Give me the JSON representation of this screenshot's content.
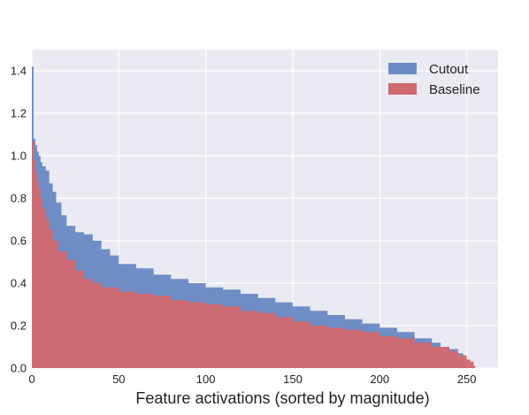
{
  "chart_data": {
    "type": "area",
    "xlabel": "Feature activations (sorted by magnitude)",
    "ylabel": "",
    "xlim": [
      0,
      268
    ],
    "ylim": [
      0,
      1.5
    ],
    "xticks": [
      0,
      50,
      100,
      150,
      200,
      250
    ],
    "xtick_labels": [
      "0",
      "50",
      "100",
      "150",
      "200",
      "250"
    ],
    "yticks": [
      0.0,
      0.2,
      0.4,
      0.6,
      0.8,
      1.0,
      1.2,
      1.4
    ],
    "ytick_labels": [
      "0.0",
      "0.2",
      "0.4",
      "0.6",
      "0.8",
      "1.0",
      "1.2",
      "1.4"
    ],
    "grid": true,
    "legend_position": "top-right",
    "colors": {
      "plot_bg": "#eaeaf2",
      "grid": "#ffffff",
      "cutout": "#6a8ac4",
      "baseline": "#d06a70"
    },
    "series": [
      {
        "name": "Cutout",
        "color": "#6a8ac4",
        "x": [
          0,
          1,
          2,
          3,
          4,
          5,
          6,
          8,
          10,
          12,
          14,
          17,
          20,
          25,
          30,
          35,
          40,
          45,
          50,
          60,
          70,
          80,
          90,
          100,
          110,
          120,
          130,
          140,
          150,
          160,
          170,
          180,
          190,
          200,
          210,
          220,
          230,
          235,
          240,
          245,
          248
        ],
        "y": [
          1.42,
          1.08,
          1.05,
          1.02,
          1.0,
          0.97,
          0.95,
          0.93,
          0.87,
          0.83,
          0.78,
          0.72,
          0.67,
          0.64,
          0.63,
          0.6,
          0.56,
          0.53,
          0.49,
          0.47,
          0.44,
          0.42,
          0.4,
          0.38,
          0.37,
          0.35,
          0.33,
          0.31,
          0.29,
          0.27,
          0.25,
          0.23,
          0.21,
          0.19,
          0.17,
          0.14,
          0.12,
          0.1,
          0.09,
          0.07,
          0.06
        ]
      },
      {
        "name": "Baseline",
        "color": "#d06a70",
        "x": [
          0,
          1,
          2,
          3,
          4,
          5,
          6,
          8,
          10,
          12,
          15,
          20,
          25,
          30,
          35,
          40,
          50,
          60,
          70,
          80,
          90,
          100,
          110,
          120,
          130,
          140,
          150,
          160,
          170,
          180,
          190,
          200,
          210,
          220,
          230,
          240,
          245,
          250,
          252,
          254
        ],
        "y": [
          1.07,
          0.98,
          0.92,
          0.88,
          0.85,
          0.8,
          0.75,
          0.7,
          0.65,
          0.6,
          0.55,
          0.51,
          0.46,
          0.42,
          0.4,
          0.38,
          0.36,
          0.35,
          0.34,
          0.32,
          0.31,
          0.3,
          0.29,
          0.27,
          0.26,
          0.24,
          0.22,
          0.2,
          0.19,
          0.18,
          0.17,
          0.15,
          0.14,
          0.12,
          0.1,
          0.08,
          0.06,
          0.04,
          0.03,
          0.01
        ]
      }
    ]
  }
}
